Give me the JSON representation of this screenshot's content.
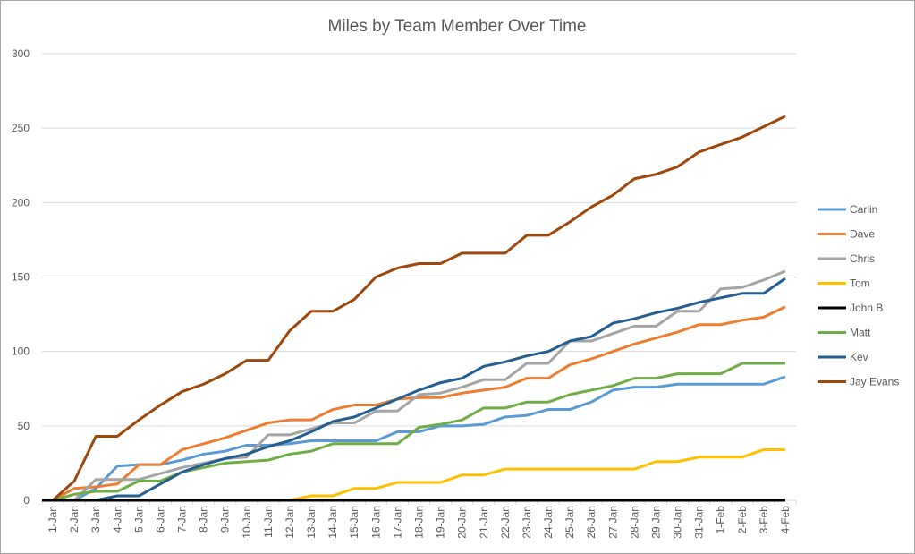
{
  "chart_data": {
    "type": "line",
    "title": "Miles by Team Member Over Time",
    "xlabel": "",
    "ylabel": "",
    "ylim": [
      0,
      300
    ],
    "yticks": [
      "0",
      "50",
      "100",
      "150",
      "200",
      "250",
      "300"
    ],
    "ytick_values": [
      0,
      50,
      100,
      150,
      200,
      250,
      300
    ],
    "grid": true,
    "legend_position": "right",
    "categories": [
      "1-Jan",
      "2-Jan",
      "3-Jan",
      "4-Jan",
      "5-Jan",
      "6-Jan",
      "7-Jan",
      "8-Jan",
      "9-Jan",
      "10-Jan",
      "11-Jan",
      "12-Jan",
      "13-Jan",
      "14-Jan",
      "15-Jan",
      "16-Jan",
      "17-Jan",
      "18-Jan",
      "19-Jan",
      "20-Jan",
      "21-Jan",
      "22-Jan",
      "23-Jan",
      "24-Jan",
      "25-Jan",
      "26-Jan",
      "27-Jan",
      "28-Jan",
      "29-Jan",
      "30-Jan",
      "31-Jan",
      "1-Feb",
      "2-Feb",
      "3-Feb",
      "4-Feb"
    ],
    "series": [
      {
        "name": "Carlin",
        "color": "#5b9bd5",
        "values": [
          0,
          0,
          8,
          23,
          24,
          24,
          27,
          31,
          33,
          37,
          37,
          38,
          40,
          40,
          40,
          40,
          46,
          46,
          50,
          50,
          51,
          56,
          57,
          61,
          61,
          66,
          74,
          76,
          76,
          78,
          78,
          78,
          78,
          78,
          83
        ]
      },
      {
        "name": "Dave",
        "color": "#ed7d31",
        "values": [
          0,
          8,
          9,
          11,
          24,
          24,
          34,
          38,
          42,
          47,
          52,
          54,
          54,
          61,
          64,
          64,
          68,
          69,
          69,
          72,
          74,
          76,
          82,
          82,
          91,
          95,
          100,
          105,
          109,
          113,
          118,
          118,
          121,
          123,
          130
        ]
      },
      {
        "name": "Chris",
        "color": "#a5a5a5",
        "values": [
          0,
          0,
          14,
          14,
          14,
          18,
          22,
          25,
          28,
          29,
          44,
          44,
          48,
          52,
          52,
          60,
          60,
          71,
          72,
          76,
          81,
          81,
          92,
          92,
          107,
          107,
          112,
          117,
          117,
          127,
          127,
          142,
          143,
          148,
          154
        ]
      },
      {
        "name": "Tom",
        "color": "#ffc000",
        "values": [
          0,
          0,
          0,
          0,
          0,
          0,
          0,
          0,
          0,
          0,
          0,
          0,
          3,
          3,
          8,
          8,
          12,
          12,
          12,
          17,
          17,
          21,
          21,
          21,
          21,
          21,
          21,
          21,
          26,
          26,
          29,
          29,
          29,
          34,
          34
        ]
      },
      {
        "name": "John B",
        "color": "#000000",
        "values": [
          0,
          0,
          0,
          0,
          0,
          0,
          0,
          0,
          0,
          0,
          0,
          0,
          0,
          0,
          0,
          0,
          0,
          0,
          0,
          0,
          0,
          0,
          0,
          0,
          0,
          0,
          0,
          0,
          0,
          0,
          0,
          0,
          0,
          0,
          0
        ]
      },
      {
        "name": "Matt",
        "color": "#70ad47",
        "values": [
          0,
          4,
          6,
          6,
          13,
          13,
          19,
          22,
          25,
          26,
          27,
          31,
          33,
          38,
          38,
          38,
          38,
          49,
          51,
          54,
          62,
          62,
          66,
          66,
          71,
          74,
          77,
          82,
          82,
          85,
          85,
          85,
          92,
          92,
          92
        ]
      },
      {
        "name": "Kev",
        "color": "#255e91",
        "values": [
          0,
          0,
          0,
          3,
          3,
          11,
          19,
          24,
          28,
          31,
          36,
          40,
          46,
          53,
          56,
          62,
          68,
          74,
          79,
          82,
          90,
          93,
          97,
          100,
          107,
          110,
          119,
          122,
          126,
          129,
          133,
          136,
          139,
          139,
          149
        ]
      },
      {
        "name": "Jay Evans",
        "color": "#9e480e",
        "values": [
          0,
          13,
          43,
          43,
          54,
          64,
          73,
          78,
          85,
          94,
          94,
          114,
          127,
          127,
          135,
          150,
          156,
          159,
          159,
          166,
          166,
          166,
          178,
          178,
          187,
          197,
          205,
          216,
          219,
          224,
          234,
          239,
          244,
          251,
          258
        ]
      }
    ]
  }
}
